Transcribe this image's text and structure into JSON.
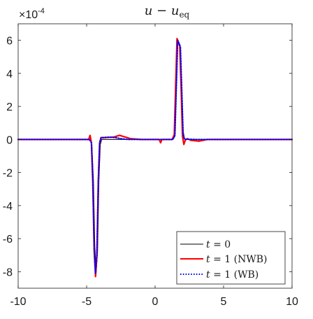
{
  "chart_data": {
    "type": "line",
    "title": {
      "main": "u − u",
      "sub": "eq"
    },
    "xlabel": "",
    "ylabel": "",
    "xlim": [
      -10,
      10
    ],
    "ylim": [
      -9,
      7
    ],
    "y_multiplier": {
      "base": "×10",
      "exponent": "-4"
    },
    "x_ticks": [
      -10,
      -5,
      0,
      5,
      10
    ],
    "y_ticks": [
      -8,
      -6,
      -4,
      -2,
      0,
      2,
      4,
      6
    ],
    "x_tick_labels": [
      "-10",
      "-5",
      "0",
      "5",
      "10"
    ],
    "y_tick_labels": [
      "-8",
      "-6",
      "-4",
      "-2",
      "0",
      "2",
      "4",
      "6"
    ],
    "grid": false,
    "legend_position": "bottom-right",
    "series": [
      {
        "name": "t = 0",
        "legend": {
          "var": "t",
          "rest": " = 0"
        },
        "color": "#000000",
        "style": "solid",
        "x": [
          -10,
          -4.75,
          -4.62,
          -4.5,
          -4.4,
          -4.3,
          -4.2,
          -4.1,
          -4.0,
          -3.9,
          -3.85,
          1.3,
          1.45,
          1.55,
          1.65,
          1.75,
          1.85,
          1.95,
          2.05,
          2.15,
          2.25,
          10
        ],
        "y": [
          0,
          0,
          -0.2,
          -2.5,
          -6.5,
          -8.0,
          -6.8,
          -2.5,
          -0.3,
          0,
          0,
          0,
          0.2,
          3.0,
          5.9,
          5.7,
          5.6,
          3.0,
          0.5,
          0.05,
          0,
          0
        ]
      },
      {
        "name": "t = 1 (NWB)",
        "legend": {
          "var": "t",
          "rest": " = 1 (NWB)"
        },
        "color": "#ff0000",
        "style": "solid",
        "x": [
          -10,
          -4.85,
          -4.75,
          -4.65,
          -4.55,
          -4.45,
          -4.35,
          -4.25,
          -4.15,
          -4.05,
          -3.95,
          -3.8,
          -3.5,
          -3.0,
          -2.6,
          -2.2,
          -1.8,
          -1.0,
          0.3,
          0.4,
          0.5,
          1.25,
          1.4,
          1.5,
          1.6,
          1.7,
          1.8,
          1.9,
          2.0,
          2.1,
          2.2,
          2.35,
          2.6,
          3.2,
          3.8,
          10
        ],
        "y": [
          0,
          0,
          0.25,
          -0.2,
          -2.6,
          -6.7,
          -8.3,
          -7.0,
          -2.6,
          -0.2,
          0.12,
          0.1,
          0.12,
          0.15,
          0.25,
          0.15,
          0.05,
          0,
          0,
          -0.2,
          0,
          0,
          0.3,
          3.2,
          6.1,
          5.9,
          5.7,
          3.1,
          0.2,
          -0.3,
          -0.05,
          0.05,
          -0.05,
          -0.1,
          0,
          0
        ]
      },
      {
        "name": "t = 1 (WB)",
        "legend": {
          "var": "t",
          "rest": " = 1 (WB)"
        },
        "color": "#0000ff",
        "style": "dotted",
        "x": [
          -10,
          -4.8,
          -4.65,
          -4.55,
          -4.45,
          -4.35,
          -4.25,
          -4.15,
          -4.05,
          -3.95,
          -3.8,
          -3.5,
          -3.0,
          -2.5,
          -2.0,
          1.3,
          1.45,
          1.55,
          1.65,
          1.75,
          1.85,
          1.95,
          2.05,
          2.15,
          2.3,
          3.0,
          10
        ],
        "y": [
          0,
          0,
          -0.2,
          -2.5,
          -6.6,
          -8.1,
          -6.9,
          -2.5,
          -0.2,
          0.1,
          0.12,
          0.14,
          0.12,
          0.05,
          0,
          0,
          0.25,
          3.1,
          6.0,
          5.8,
          5.6,
          3.0,
          0.3,
          0,
          0.02,
          0,
          0
        ]
      }
    ]
  }
}
